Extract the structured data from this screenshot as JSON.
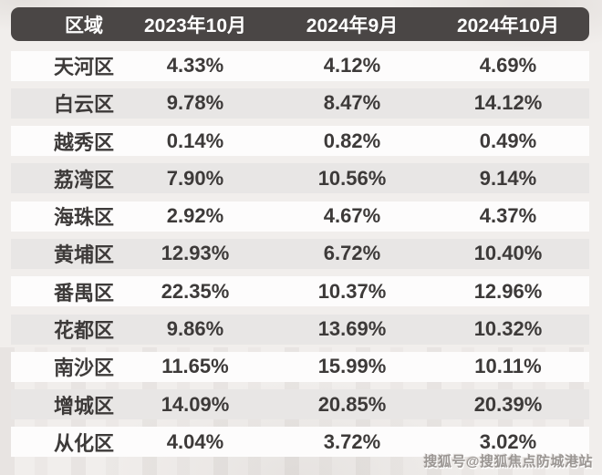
{
  "header": {
    "columns": [
      "区域",
      "2023年10月",
      "2024年9月",
      "2024年10月"
    ]
  },
  "rows": [
    {
      "district": "天河区",
      "values": [
        "4.33%",
        "4.12%",
        "4.69%"
      ]
    },
    {
      "district": "白云区",
      "values": [
        "9.78%",
        "8.47%",
        "14.12%"
      ]
    },
    {
      "district": "越秀区",
      "values": [
        "0.14%",
        "0.82%",
        "0.49%"
      ]
    },
    {
      "district": "荔湾区",
      "values": [
        "7.90%",
        "10.56%",
        "9.14%"
      ]
    },
    {
      "district": "海珠区",
      "values": [
        "2.92%",
        "4.67%",
        "4.37%"
      ]
    },
    {
      "district": "黄埔区",
      "values": [
        "12.93%",
        "6.72%",
        "10.40%"
      ]
    },
    {
      "district": "番禺区",
      "values": [
        "22.35%",
        "10.37%",
        "12.96%"
      ]
    },
    {
      "district": "花都区",
      "values": [
        "9.86%",
        "13.69%",
        "10.32%"
      ]
    },
    {
      "district": "南沙区",
      "values": [
        "11.65%",
        "15.99%",
        "10.11%"
      ]
    },
    {
      "district": "增城区",
      "values": [
        "14.09%",
        "20.85%",
        "20.39%"
      ]
    },
    {
      "district": "从化区",
      "values": [
        "4.04%",
        "3.72%",
        "3.02%"
      ]
    }
  ],
  "watermark": "搜狐号@搜狐焦点防城港站",
  "colors": {
    "page_bg": "#f1eeec",
    "header_bg": "#4a4645",
    "header_text": "#ffffff",
    "row_bg": "#fdfcfc",
    "row_alt_bg": "#e8e6e5",
    "cell_text": "#3d3a39",
    "watermark_text": "#9b9693"
  },
  "chart_data": {
    "type": "table",
    "columns": [
      "区域",
      "2023年10月",
      "2024年9月",
      "2024年10月"
    ],
    "unit": "%",
    "rows": [
      [
        "天河区",
        4.33,
        4.12,
        4.69
      ],
      [
        "白云区",
        9.78,
        8.47,
        14.12
      ],
      [
        "越秀区",
        0.14,
        0.82,
        0.49
      ],
      [
        "荔湾区",
        7.9,
        10.56,
        9.14
      ],
      [
        "海珠区",
        2.92,
        4.67,
        4.37
      ],
      [
        "黄埔区",
        12.93,
        6.72,
        10.4
      ],
      [
        "番禺区",
        22.35,
        10.37,
        12.96
      ],
      [
        "花都区",
        9.86,
        13.69,
        10.32
      ],
      [
        "南沙区",
        11.65,
        15.99,
        10.11
      ],
      [
        "增城区",
        14.09,
        20.85,
        20.39
      ],
      [
        "从化区",
        4.04,
        3.72,
        3.02
      ]
    ]
  }
}
